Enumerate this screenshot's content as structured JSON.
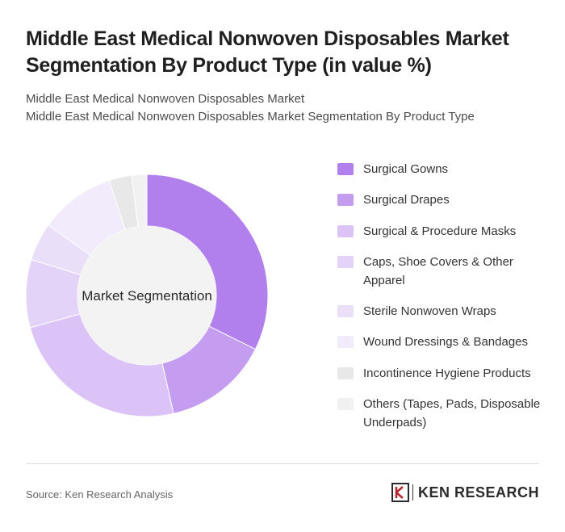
{
  "title": "Middle East Medical Nonwoven Disposables Market Segmentation By Product Type (in value %)",
  "subtitle_line1": "Middle East Medical Nonwoven Disposables Market",
  "subtitle_line2": "Middle East Medical Nonwoven Disposables Market Segmentation By Product Type",
  "source": "Source: Ken Research Analysis",
  "logo": {
    "text": "KEN RESEARCH",
    "icon": "ken-research-logo-icon"
  },
  "chart_data": {
    "type": "pie",
    "style": "donut",
    "center_label": "Market Segmentation",
    "legend_position": "right",
    "labels": [
      "Surgical Gowns",
      "Surgical Drapes",
      "Surgical & Procedure Masks",
      "Caps, Shoe Covers & Other Apparel",
      "Sterile Nonwoven Wraps",
      "Wound Dressings & Bandages",
      "Incontinence Hygiene Products",
      "Others (Tapes, Pads, Disposable Underpads)"
    ],
    "values": [
      32,
      14,
      24,
      9,
      5,
      10,
      3,
      2
    ],
    "colors": [
      "#b280ec",
      "#c59df0",
      "#dbc3f7",
      "#e4d3f8",
      "#eadff9",
      "#f1ebfb",
      "#e8e8e8",
      "#f1f1f1"
    ]
  }
}
